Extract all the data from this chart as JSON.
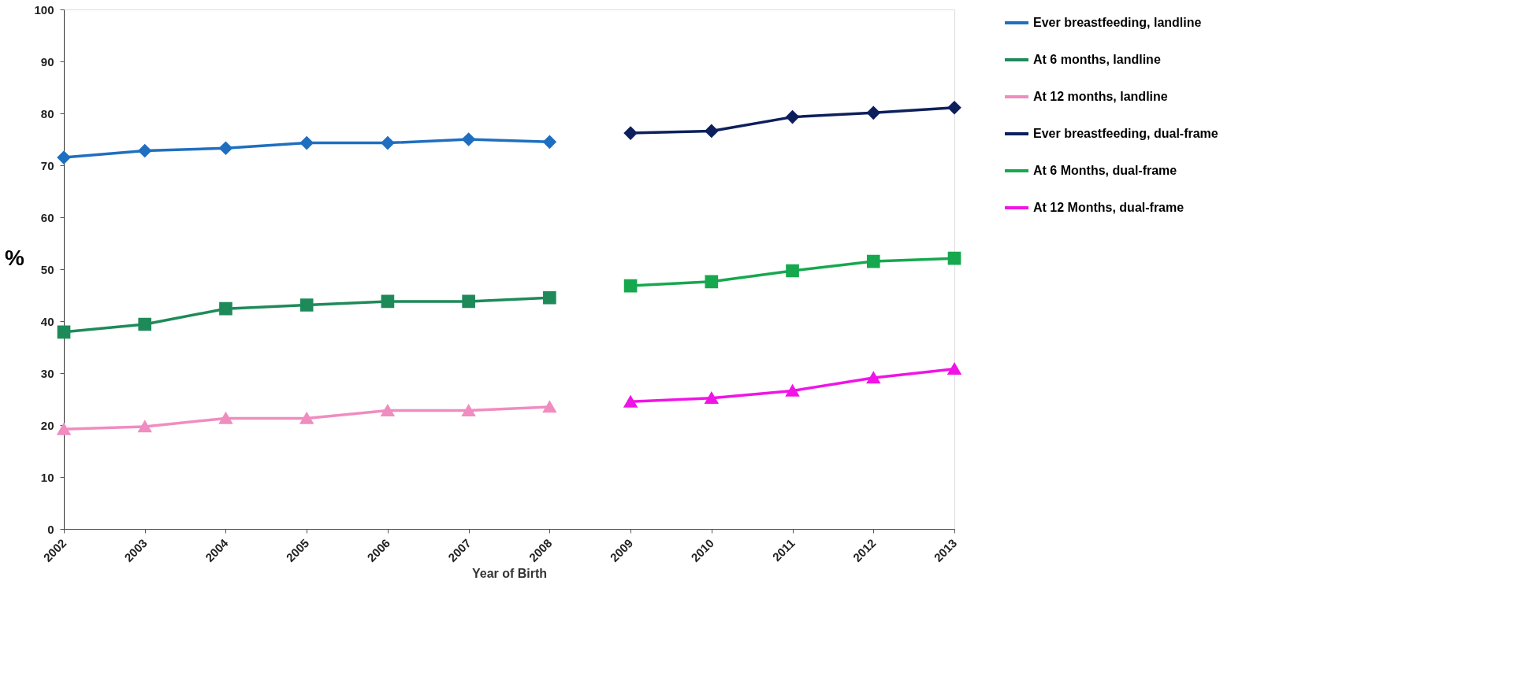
{
  "chart_data": {
    "type": "line",
    "xlabel": "Year of Birth",
    "ylabel": "%",
    "categories": [
      "2002",
      "2003",
      "2004",
      "2005",
      "2006",
      "2007",
      "2008",
      "2009",
      "2010",
      "2011",
      "2012",
      "2013"
    ],
    "ylim": [
      0,
      100
    ],
    "yticks": [
      0,
      10,
      20,
      30,
      40,
      50,
      60,
      70,
      80,
      90,
      100
    ],
    "grid": false,
    "legend": "right",
    "series": [
      {
        "name": "Ever breastfeeding, landline",
        "color": "#1f6fc0",
        "marker": "diamond",
        "line_style": "solid",
        "values": [
          71.5,
          72.8,
          73.3,
          74.3,
          74.3,
          75.0,
          74.5,
          null,
          null,
          null,
          null,
          null
        ]
      },
      {
        "name": "At 6 months, landline",
        "color": "#1e8a5a",
        "marker": "square",
        "line_style": "solid",
        "values": [
          37.9,
          39.4,
          42.4,
          43.1,
          43.8,
          43.8,
          44.5,
          null,
          null,
          null,
          null,
          null
        ]
      },
      {
        "name": "At 12 months, landline",
        "color": "#f08cc0",
        "marker": "triangle",
        "line_style": "solid",
        "values": [
          19.2,
          19.7,
          21.3,
          21.3,
          22.8,
          22.8,
          23.5,
          null,
          null,
          null,
          null,
          null
        ]
      },
      {
        "name": "Ever breastfeeding, dual-frame",
        "color": "#0d1f5c",
        "marker": "diamond",
        "line_style": "solid",
        "values": [
          null,
          null,
          null,
          null,
          null,
          null,
          null,
          76.2,
          76.6,
          79.3,
          80.1,
          81.1
        ]
      },
      {
        "name": "At 6 Months, dual-frame",
        "color": "#16a84e",
        "marker": "square",
        "line_style": "solid",
        "values": [
          null,
          null,
          null,
          null,
          null,
          null,
          null,
          46.8,
          47.6,
          49.7,
          51.5,
          52.1
        ]
      },
      {
        "name": "At 12 Months, dual-frame",
        "color": "#f014e6",
        "marker": "triangle",
        "line_style": "solid",
        "values": [
          null,
          null,
          null,
          null,
          null,
          null,
          null,
          24.5,
          25.2,
          26.6,
          29.1,
          30.8
        ]
      }
    ]
  }
}
